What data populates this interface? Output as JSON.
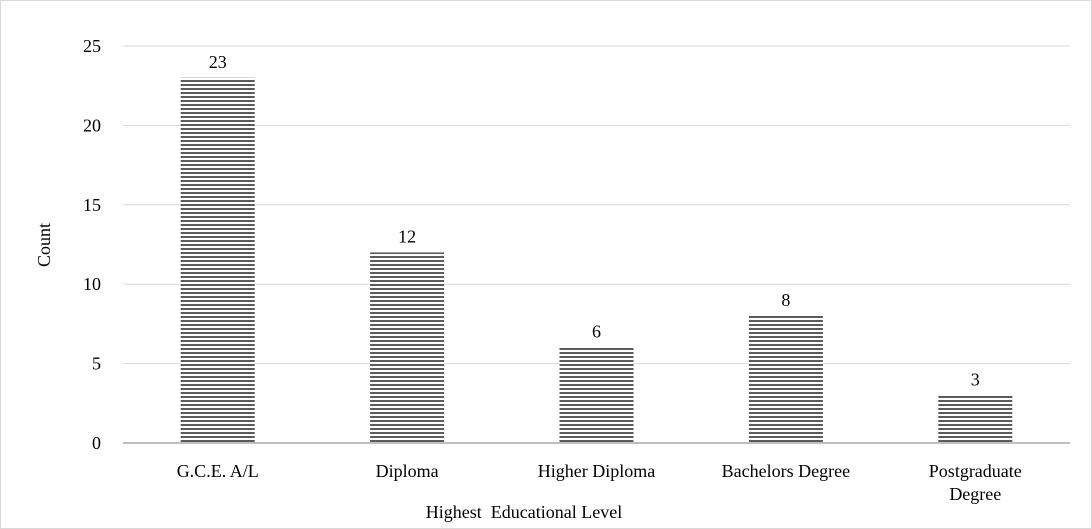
{
  "chart_data": {
    "type": "bar",
    "categories": [
      [
        "G.C.E. A/L"
      ],
      [
        "Diploma"
      ],
      [
        "Higher Diploma"
      ],
      [
        "Bachelors Degree"
      ],
      [
        "Postgraduate",
        "Degree"
      ]
    ],
    "values": [
      23,
      12,
      6,
      8,
      3
    ],
    "data_labels": [
      "23",
      "12",
      "6",
      "8",
      "3"
    ],
    "xlabel": "Highest  Educational Level",
    "ylabel": "Count",
    "ylim": [
      0,
      25
    ],
    "yticks": [
      0,
      5,
      10,
      15,
      20,
      25
    ],
    "grid": true,
    "bar_fill": "horizontal-stripes",
    "colors": {
      "stripe_dark": "#5a5a5a",
      "stripe_light": "#ffffff",
      "grid": "#d9d9d9",
      "axis": "#bfbfbf"
    }
  }
}
